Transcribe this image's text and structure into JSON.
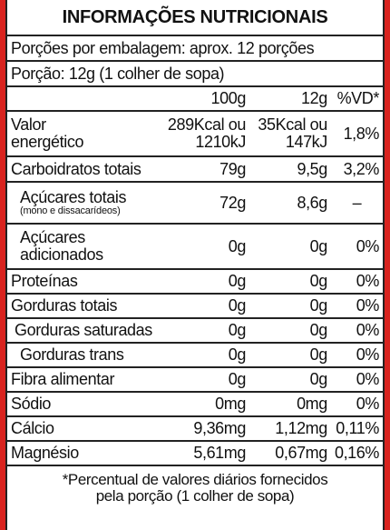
{
  "title": "INFORMAÇÕES NUTRICIONAIS",
  "servings_per_package": "Porções por embalagem: aprox. 12 porções",
  "serving_size": "Porção: 12g (1 colher de sopa)",
  "headers": {
    "per100": "100g",
    "per12": "12g",
    "vd": "%VD*"
  },
  "energy": {
    "label_line1": "Valor",
    "label_line2": "energético",
    "per100_line1": "289Kcal ou",
    "per100_line2": "1210kJ",
    "per12_line1": "35Kcal ou",
    "per12_line2": "147kJ",
    "vd": "1,8%"
  },
  "carbs": {
    "label": "Carboidratos totais",
    "per100": "79g",
    "per12": "9,5g",
    "vd": "3,2%"
  },
  "sugars": {
    "label": "Açúcares totais",
    "note": "(mono e dissacarídeos)",
    "per100": "72g",
    "per12": "8,6g",
    "vd": "–"
  },
  "added_sugars": {
    "label_line1": "Açúcares",
    "label_line2": "adicionados",
    "per100": "0g",
    "per12": "0g",
    "vd": "0%"
  },
  "rows": [
    {
      "label": "Proteínas",
      "per100": "0g",
      "per12": "0g",
      "vd": "0%",
      "indent": 0
    },
    {
      "label": "Gorduras totais",
      "per100": "0g",
      "per12": "0g",
      "vd": "0%",
      "indent": 0
    },
    {
      "label": "Gorduras saturadas",
      "per100": "0g",
      "per12": "0g",
      "vd": "0%",
      "indent": 1
    },
    {
      "label": "Gorduras trans",
      "per100": "0g",
      "per12": "0g",
      "vd": "0%",
      "indent": 2
    },
    {
      "label": "Fibra alimentar",
      "per100": "0g",
      "per12": "0g",
      "vd": "0%",
      "indent": 0
    },
    {
      "label": "Sódio",
      "per100": "0mg",
      "per12": "0mg",
      "vd": "0%",
      "indent": 0
    },
    {
      "label": "Cálcio",
      "per100": "9,36mg",
      "per12": "1,12mg",
      "vd": "0,11%",
      "indent": 0
    },
    {
      "label": "Magnésio",
      "per100": "5,61mg",
      "per12": "0,67mg",
      "vd": "0,16%",
      "indent": 0
    }
  ],
  "footer": {
    "line1": "*Percentual de valores diários fornecidos",
    "line2": "pela porção (1 colher de sopa)"
  },
  "colors": {
    "background": "#d8231e",
    "panel": "#ffffff",
    "text": "#111111"
  }
}
